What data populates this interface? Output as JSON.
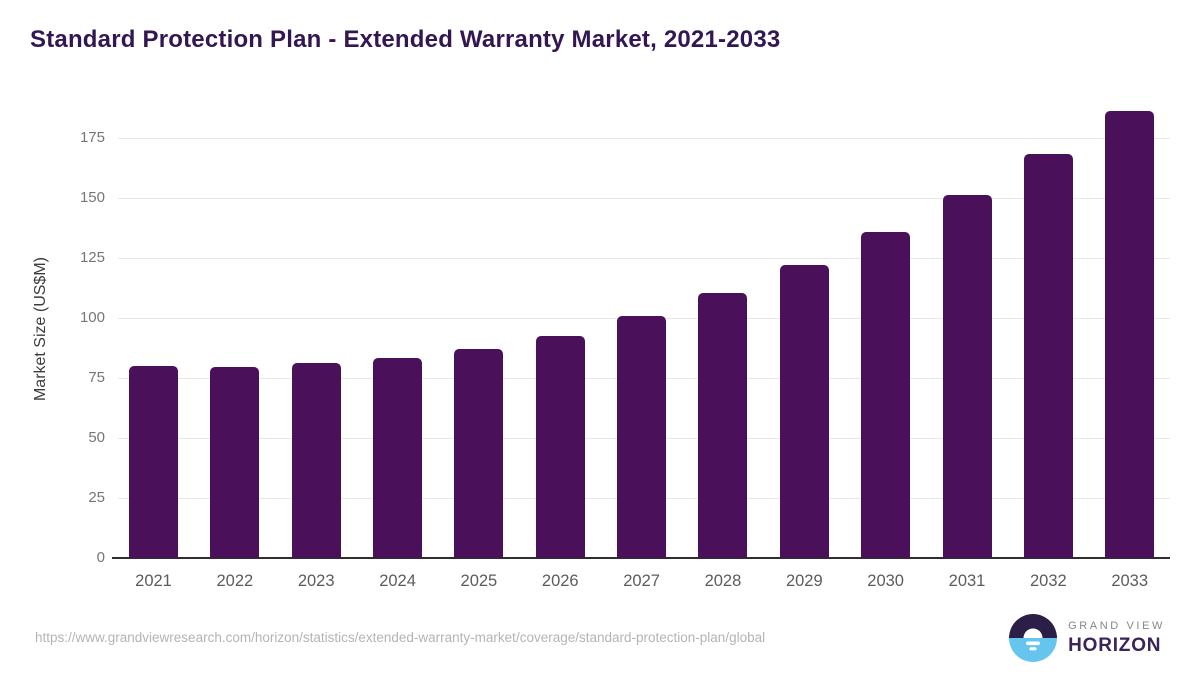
{
  "page": {
    "title": "Standard Protection Plan - Extended Warranty Market, 2021-2033",
    "source_url": "https://www.grandviewresearch.com/horizon/statistics/extended-warranty-market/coverage/standard-protection-plan/global",
    "brand": {
      "line1": "GRAND VIEW",
      "line2": "HORIZON",
      "icon": "horizon-sunrise-circle-icon"
    }
  },
  "colors": {
    "title": "#331753",
    "bar": "#4A1059",
    "axis": "#2e2e2e",
    "grid": "#e8e8e8",
    "ytick": "#767676",
    "xtick": "#5c5c5c",
    "ylabel": "#3b3b3b",
    "url": "#b4b4b4",
    "logodark": "#2B1F47",
    "logoblue": "#66C5EF",
    "brandtop": "#878787",
    "brandbottom": "#392558"
  },
  "chart_data": {
    "type": "bar",
    "title": "Standard Protection Plan - Extended Warranty Market, 2021-2033",
    "xlabel": "",
    "ylabel": "Market Size (US$M)",
    "categories": [
      "2021",
      "2022",
      "2023",
      "2024",
      "2025",
      "2026",
      "2027",
      "2028",
      "2029",
      "2030",
      "2031",
      "2032",
      "2033"
    ],
    "values": [
      80.0,
      79.5,
      81.4,
      83.4,
      87.2,
      92.7,
      101.0,
      110.5,
      122.1,
      135.8,
      151.3,
      168.5,
      186.4
    ],
    "yticks": [
      0,
      25,
      50,
      75,
      100,
      125,
      150,
      175
    ],
    "ylim": [
      0,
      191
    ],
    "grid": "horizontal",
    "legend": "none",
    "bar_color": "#4A1059"
  }
}
